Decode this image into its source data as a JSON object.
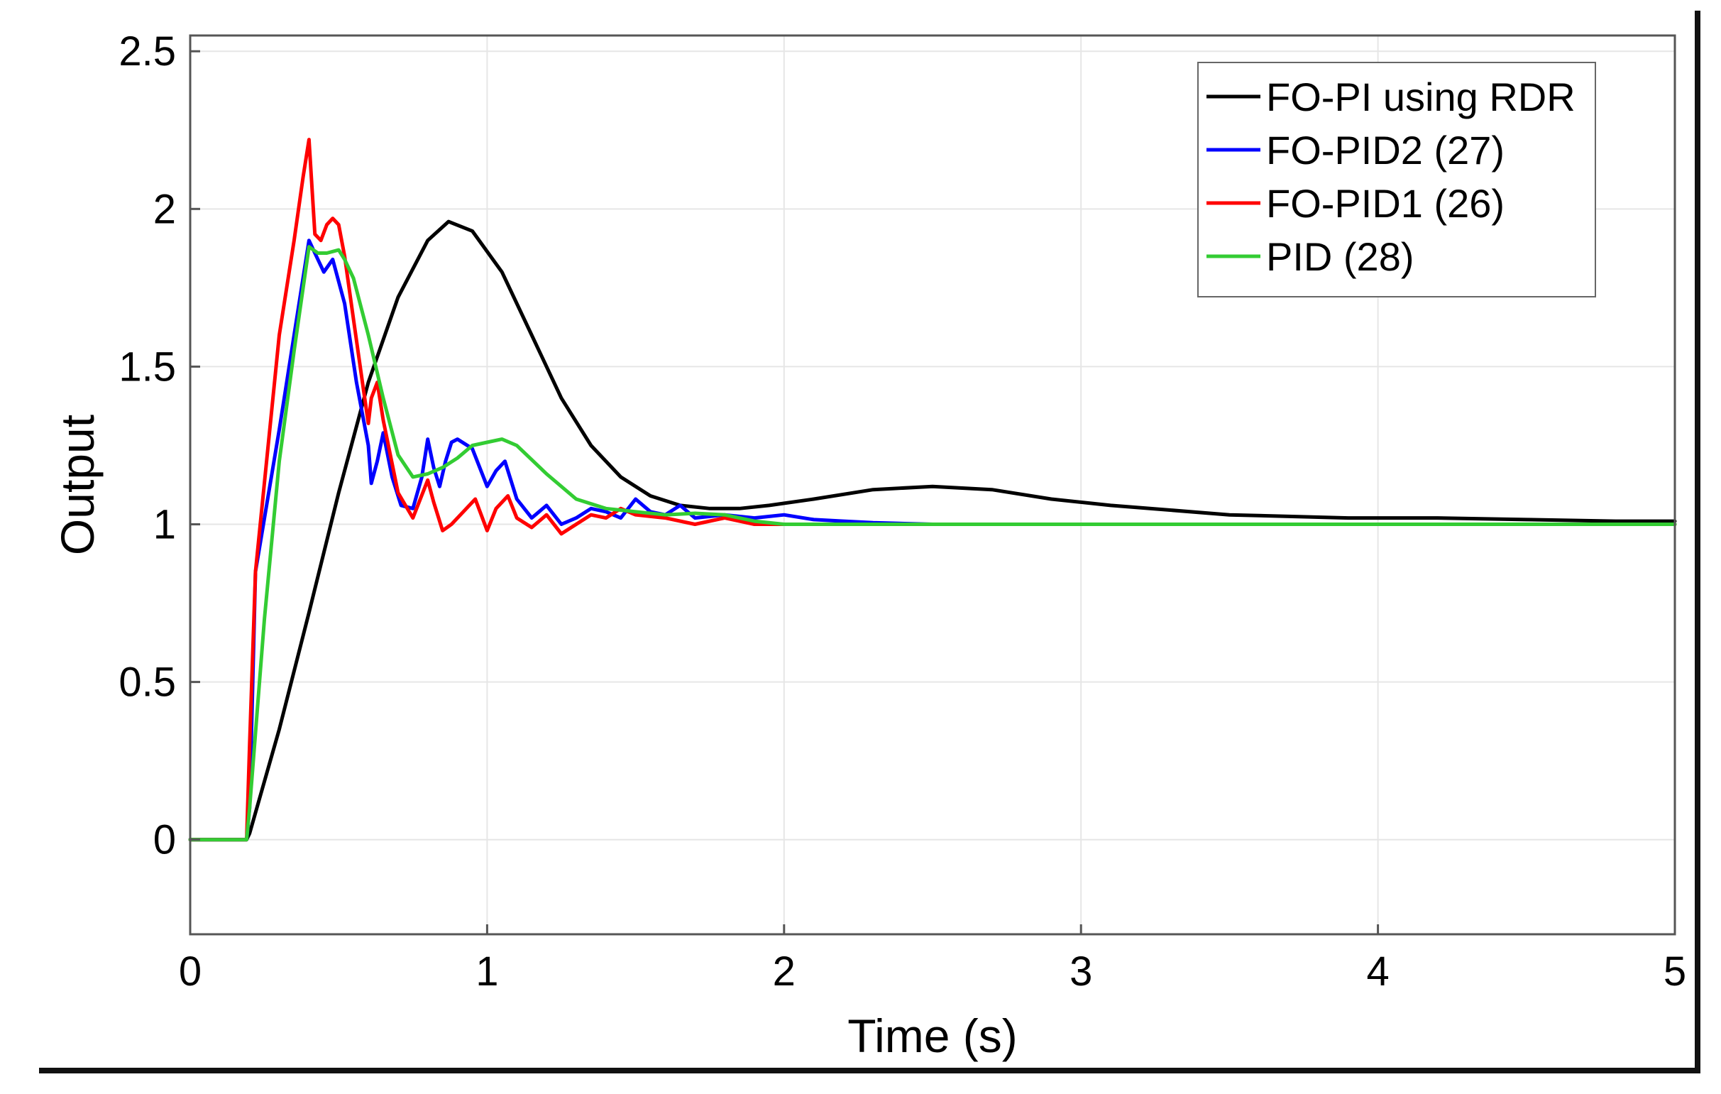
{
  "chart_data": {
    "type": "line",
    "title": "",
    "xlabel": "Time (s)",
    "ylabel": "Output",
    "xlim": [
      0,
      5
    ],
    "ylim": [
      -0.3,
      2.55
    ],
    "xticks": [
      0,
      1,
      2,
      3,
      4,
      5
    ],
    "xtick_labels": [
      "0",
      "1",
      "2",
      "3",
      "4",
      "5"
    ],
    "yticks": [
      0,
      0.5,
      1,
      1.5,
      2,
      2.5
    ],
    "ytick_labels": [
      "0",
      "0.5",
      "1",
      "1.5",
      "2",
      "2.5"
    ],
    "grid": true,
    "legend_position": "top-right",
    "series": [
      {
        "name": "FO-PI using RDR",
        "color": "#000000",
        "x": [
          0,
          0.1,
          0.19,
          0.2,
          0.3,
          0.4,
          0.5,
          0.6,
          0.7,
          0.8,
          0.87,
          0.95,
          1.05,
          1.15,
          1.25,
          1.35,
          1.45,
          1.55,
          1.65,
          1.75,
          1.85,
          1.95,
          2.1,
          2.3,
          2.5,
          2.7,
          2.9,
          3.1,
          3.3,
          3.5,
          3.7,
          3.9,
          4.2,
          4.5,
          4.8,
          5.0
        ],
        "y": [
          0,
          0,
          0,
          0.02,
          0.35,
          0.72,
          1.1,
          1.45,
          1.72,
          1.9,
          1.96,
          1.93,
          1.8,
          1.6,
          1.4,
          1.25,
          1.15,
          1.09,
          1.06,
          1.05,
          1.05,
          1.06,
          1.08,
          1.11,
          1.12,
          1.11,
          1.08,
          1.06,
          1.045,
          1.03,
          1.025,
          1.02,
          1.02,
          1.015,
          1.01,
          1.01
        ]
      },
      {
        "name": "FO-PID2 (27)",
        "color": "#0000ff",
        "x": [
          0,
          0.1,
          0.19,
          0.2,
          0.22,
          0.3,
          0.35,
          0.4,
          0.42,
          0.45,
          0.48,
          0.52,
          0.56,
          0.6,
          0.61,
          0.63,
          0.65,
          0.68,
          0.71,
          0.75,
          0.78,
          0.8,
          0.82,
          0.84,
          0.86,
          0.88,
          0.9,
          0.95,
          1.0,
          1.03,
          1.06,
          1.1,
          1.15,
          1.2,
          1.25,
          1.3,
          1.35,
          1.4,
          1.45,
          1.5,
          1.55,
          1.6,
          1.65,
          1.7,
          1.8,
          1.9,
          2.0,
          2.1,
          2.2,
          2.3,
          2.5,
          3.0,
          4.0,
          5.0
        ],
        "y": [
          0,
          0,
          0,
          0.1,
          0.85,
          1.3,
          1.6,
          1.9,
          1.86,
          1.8,
          1.84,
          1.7,
          1.45,
          1.25,
          1.13,
          1.2,
          1.29,
          1.15,
          1.06,
          1.05,
          1.15,
          1.27,
          1.18,
          1.12,
          1.2,
          1.26,
          1.27,
          1.24,
          1.12,
          1.17,
          1.2,
          1.08,
          1.02,
          1.06,
          1.0,
          1.02,
          1.05,
          1.04,
          1.02,
          1.08,
          1.04,
          1.03,
          1.06,
          1.02,
          1.03,
          1.02,
          1.03,
          1.015,
          1.01,
          1.005,
          1.0,
          1.0,
          1.0,
          1.0
        ]
      },
      {
        "name": "FO-PID1 (26)",
        "color": "#ff0000",
        "x": [
          0,
          0.1,
          0.19,
          0.2,
          0.22,
          0.3,
          0.35,
          0.38,
          0.4,
          0.42,
          0.44,
          0.46,
          0.48,
          0.5,
          0.52,
          0.55,
          0.58,
          0.6,
          0.61,
          0.63,
          0.65,
          0.7,
          0.75,
          0.8,
          0.82,
          0.85,
          0.88,
          0.92,
          0.96,
          1.0,
          1.03,
          1.07,
          1.1,
          1.15,
          1.2,
          1.25,
          1.3,
          1.35,
          1.4,
          1.45,
          1.5,
          1.6,
          1.7,
          1.8,
          1.9,
          2.0,
          2.2,
          2.5,
          3.0,
          4.0,
          5.0
        ],
        "y": [
          0,
          0,
          0,
          0.3,
          0.85,
          1.6,
          1.9,
          2.1,
          2.22,
          1.92,
          1.9,
          1.95,
          1.97,
          1.95,
          1.85,
          1.65,
          1.45,
          1.32,
          1.4,
          1.45,
          1.33,
          1.1,
          1.02,
          1.14,
          1.07,
          0.98,
          1.0,
          1.04,
          1.08,
          0.98,
          1.05,
          1.09,
          1.02,
          0.99,
          1.03,
          0.97,
          1.0,
          1.03,
          1.02,
          1.05,
          1.03,
          1.02,
          1.0,
          1.02,
          1.0,
          1.0,
          1.0,
          1.0,
          1.0,
          1.0,
          1.0
        ]
      },
      {
        "name": "PID (28)",
        "color": "#33cc33",
        "x": [
          0,
          0.1,
          0.19,
          0.2,
          0.25,
          0.3,
          0.35,
          0.4,
          0.43,
          0.46,
          0.5,
          0.52,
          0.55,
          0.6,
          0.65,
          0.7,
          0.75,
          0.8,
          0.85,
          0.9,
          0.95,
          1.0,
          1.05,
          1.1,
          1.2,
          1.3,
          1.4,
          1.5,
          1.6,
          1.7,
          1.8,
          1.9,
          2.0,
          2.5,
          3.0,
          4.0,
          5.0
        ],
        "y": [
          0,
          0,
          0,
          0.1,
          0.7,
          1.2,
          1.55,
          1.88,
          1.86,
          1.86,
          1.87,
          1.84,
          1.78,
          1.6,
          1.4,
          1.22,
          1.15,
          1.16,
          1.18,
          1.21,
          1.25,
          1.26,
          1.27,
          1.25,
          1.16,
          1.08,
          1.05,
          1.04,
          1.03,
          1.035,
          1.03,
          1.01,
          1.0,
          1.0,
          1.0,
          1.0,
          1.0
        ]
      }
    ]
  }
}
